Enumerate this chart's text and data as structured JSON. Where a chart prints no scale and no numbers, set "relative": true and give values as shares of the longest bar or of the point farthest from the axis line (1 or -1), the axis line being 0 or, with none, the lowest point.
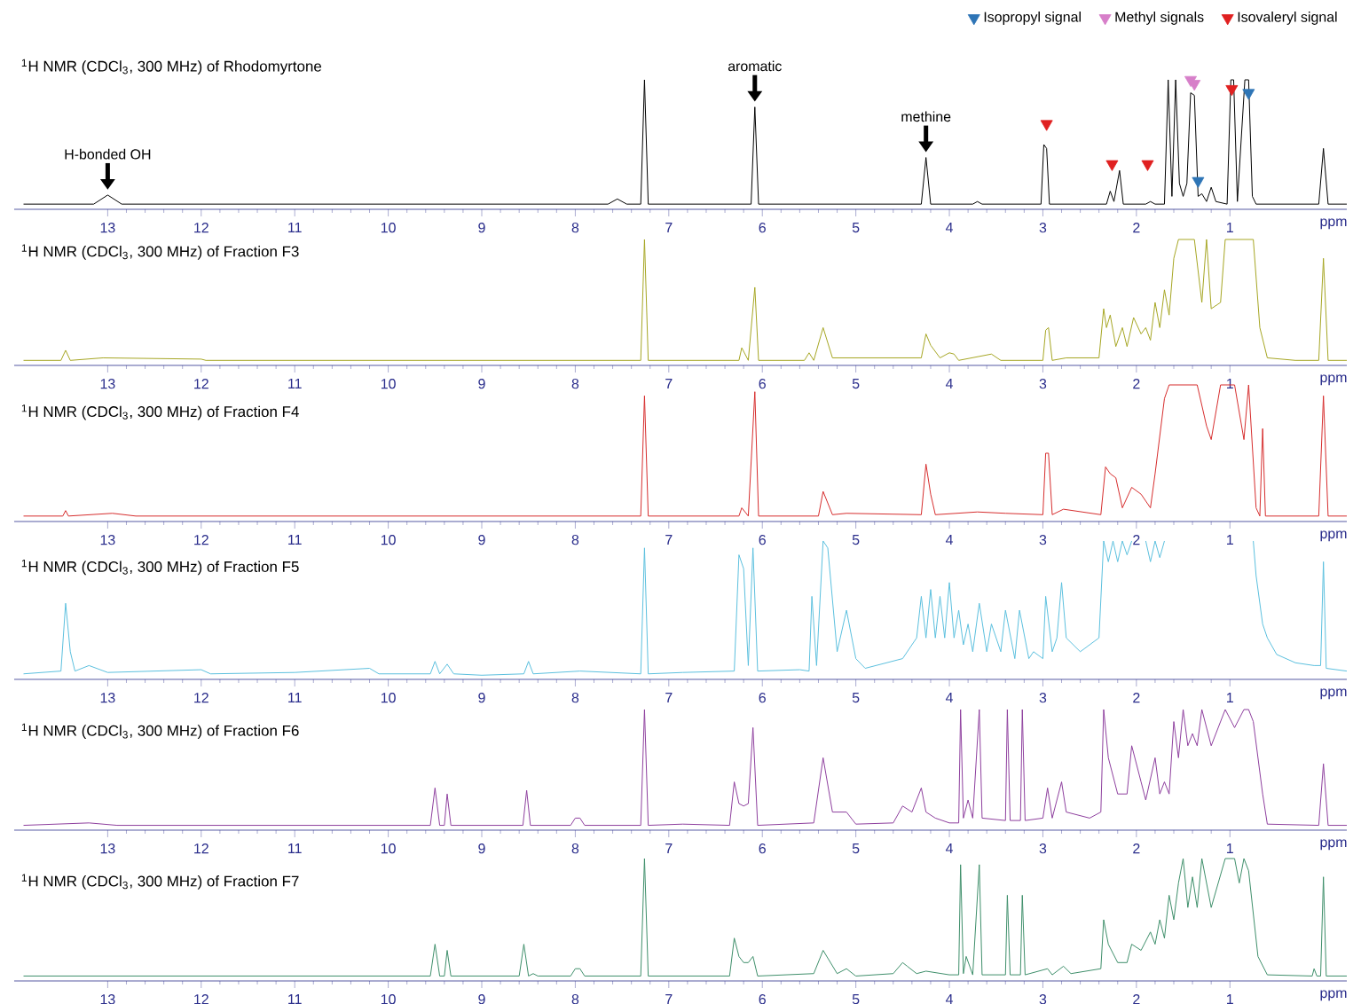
{
  "chart_data": [
    {
      "type": "line",
      "title": "$^{1}$H NMR (CDCl$_{3}$, 300 MHz) of Rhodomyrtone",
      "xlabel": "ppm",
      "relative": true,
      "xlim": [
        14.0,
        -0.25
      ],
      "xticks": [
        13,
        12,
        11,
        10,
        9,
        8,
        7,
        6,
        5,
        4,
        3,
        2,
        1
      ],
      "legend": "top right",
      "annotations": [
        {
          "text": "H-bonded OH",
          "x": 13.0,
          "y": 0.11
        },
        {
          "text": "aromatic",
          "x": 6.08,
          "y": 0.79
        },
        {
          "text": "methine",
          "x": 4.25,
          "y": 0.4
        }
      ],
      "series": [
        {
          "color": "#000000",
          "x": [
            13.9,
            13.15,
            13.0,
            12.85,
            7.65,
            7.55,
            7.45,
            7.3,
            7.26,
            7.22,
            6.12,
            6.08,
            6.04,
            4.3,
            4.25,
            4.2,
            3.75,
            3.7,
            3.65,
            3.02,
            2.99,
            2.96,
            2.93,
            2.32,
            2.28,
            2.24,
            2.18,
            2.14,
            1.9,
            1.85,
            1.8,
            1.7,
            1.66,
            1.62,
            1.58,
            1.54,
            1.5,
            1.46,
            1.42,
            1.38,
            1.34,
            1.3,
            1.25,
            1.2,
            1.15,
            1.03,
            0.99,
            0.96,
            0.92,
            0.84,
            0.8,
            0.76,
            0.72,
            0.05,
            0.0,
            -0.05,
            -0.25
          ],
          "values": [
            0.04,
            0.04,
            0.11,
            0.04,
            0.04,
            0.08,
            0.04,
            0.04,
            1,
            0.04,
            0.04,
            0.79,
            0.04,
            0.04,
            0.4,
            0.04,
            0.04,
            0.06,
            0.04,
            0.04,
            0.5,
            0.47,
            0.04,
            0.04,
            0.14,
            0.06,
            0.3,
            0.04,
            0.04,
            0.06,
            0.04,
            0.04,
            1,
            0.1,
            1,
            0.2,
            0.1,
            0.2,
            0.9,
            0.88,
            0.1,
            0.12,
            0.06,
            0.17,
            0.06,
            0.04,
            1,
            1,
            0.06,
            1,
            1,
            0.1,
            0.04,
            0.04,
            0.47,
            0.04,
            0.04
          ]
        },
        {
          "type": "scatter",
          "marker": "triangle",
          "name": "Isopropyl signal",
          "color": "#2e75b6",
          "x": [
            0.8,
            1.34
          ],
          "values": [
            0.9,
            0.22
          ]
        },
        {
          "type": "scatter",
          "marker": "triangle",
          "name": "Methyl signals",
          "color": "#d77fc9",
          "x": [
            1.42,
            1.38
          ],
          "values": [
            1.0,
            0.97
          ]
        },
        {
          "type": "scatter",
          "marker": "triangle",
          "name": "Isovaleryl signal",
          "color": "#e02020",
          "x": [
            2.96,
            2.26,
            1.88,
            0.98
          ],
          "values": [
            0.66,
            0.35,
            0.35,
            0.93
          ]
        }
      ]
    },
    {
      "type": "line",
      "title": "$^{1}$H NMR (CDCl$_{3}$, 300 MHz) of Fraction F3",
      "xlabel": "ppm",
      "relative": true,
      "xlim": [
        14.0,
        -0.25
      ],
      "xticks": [
        13,
        12,
        11,
        10,
        9,
        8,
        7,
        6,
        5,
        4,
        3,
        2,
        1
      ],
      "series": [
        {
          "color": "#a6a623",
          "x": [
            13.9,
            13.5,
            13.45,
            13.4,
            13.05,
            12.0,
            11.95,
            7.3,
            7.26,
            7.22,
            6.25,
            6.22,
            6.15,
            6.08,
            6.04,
            5.55,
            5.5,
            5.45,
            5.35,
            5.25,
            5.1,
            4.3,
            4.25,
            4.2,
            4.1,
            4.0,
            3.95,
            3.9,
            3.55,
            3.45,
            3.0,
            2.97,
            2.94,
            2.9,
            2.75,
            2.4,
            2.35,
            2.32,
            2.28,
            2.22,
            2.15,
            2.1,
            2.03,
            1.95,
            1.9,
            1.85,
            1.8,
            1.75,
            1.7,
            1.65,
            1.6,
            1.55,
            1.45,
            1.38,
            1.3,
            1.25,
            1.2,
            1.1,
            1.05,
            0.95,
            0.85,
            0.75,
            0.68,
            0.6,
            0.3,
            0.05,
            0.0,
            -0.05,
            -0.25
          ],
          "values": [
            0.04,
            0.04,
            0.12,
            0.04,
            0.06,
            0.05,
            0.04,
            0.04,
            1,
            0.04,
            0.04,
            0.14,
            0.04,
            0.62,
            0.04,
            0.04,
            0.1,
            0.04,
            0.3,
            0.06,
            0.06,
            0.06,
            0.25,
            0.16,
            0.06,
            0.1,
            0.09,
            0.04,
            0.09,
            0.04,
            0.04,
            0.28,
            0.3,
            0.04,
            0.06,
            0.06,
            0.45,
            0.3,
            0.4,
            0.15,
            0.3,
            0.15,
            0.38,
            0.25,
            0.3,
            0.2,
            0.5,
            0.3,
            0.6,
            0.4,
            0.85,
            1,
            1,
            1,
            0.5,
            1,
            0.45,
            0.5,
            1,
            1,
            1,
            1,
            0.3,
            0.06,
            0.04,
            0.04,
            0.85,
            0.04,
            0.04
          ]
        }
      ]
    },
    {
      "type": "line",
      "title": "$^{1}$H NMR (CDCl$_{3}$, 300 MHz) of Fraction F4",
      "xlabel": "ppm",
      "relative": true,
      "xlim": [
        14.0,
        -0.25
      ],
      "xticks": [
        13,
        12,
        11,
        10,
        9,
        8,
        7,
        6,
        5,
        4,
        3,
        2,
        1
      ],
      "series": [
        {
          "color": "#d62d2d",
          "x": [
            13.9,
            13.48,
            13.45,
            13.42,
            12.95,
            12.7,
            7.3,
            7.26,
            7.22,
            6.25,
            6.22,
            6.15,
            6.08,
            6.04,
            5.4,
            5.35,
            5.25,
            5.1,
            4.3,
            4.25,
            4.2,
            4.15,
            3.7,
            3.4,
            3.0,
            2.97,
            2.94,
            2.9,
            2.78,
            2.38,
            2.33,
            2.28,
            2.22,
            2.15,
            2.05,
            1.95,
            1.85,
            1.8,
            1.7,
            1.65,
            1.5,
            1.35,
            1.25,
            1.2,
            1.1,
            0.95,
            0.85,
            0.8,
            0.72,
            0.68,
            0.65,
            0.62,
            0.05,
            0.0,
            -0.05,
            -0.25
          ],
          "values": [
            0.04,
            0.04,
            0.08,
            0.04,
            0.06,
            0.04,
            0.04,
            0.92,
            0.04,
            0.04,
            0.1,
            0.04,
            0.95,
            0.04,
            0.04,
            0.22,
            0.05,
            0.06,
            0.05,
            0.42,
            0.2,
            0.05,
            0.07,
            0.06,
            0.05,
            0.5,
            0.5,
            0.05,
            0.09,
            0.05,
            0.4,
            0.35,
            0.32,
            0.1,
            0.25,
            0.2,
            0.1,
            0.35,
            0.9,
            1,
            1,
            1,
            0.7,
            0.6,
            1,
            1,
            0.6,
            1,
            0.1,
            0.04,
            0.68,
            0.04,
            0.04,
            0.92,
            0.04,
            0.04
          ]
        }
      ]
    },
    {
      "type": "line",
      "title": "$^{1}$H NMR (CDCl$_{3}$, 300 MHz) of Fraction F5",
      "xlabel": "ppm",
      "relative": true,
      "xlim": [
        14.0,
        -0.25
      ],
      "xticks": [
        13,
        12,
        11,
        10,
        9,
        8,
        7,
        6,
        5,
        4,
        3,
        2,
        1
      ],
      "series": [
        {
          "color": "#5bc0de",
          "x": [
            13.9,
            13.5,
            13.45,
            13.4,
            13.35,
            13.2,
            13.0,
            12.0,
            11.9,
            11.0,
            10.2,
            10.1,
            9.55,
            9.5,
            9.45,
            9.37,
            9.3,
            9.0,
            8.55,
            8.5,
            8.45,
            7.95,
            7.3,
            7.26,
            7.22,
            6.85,
            6.3,
            6.25,
            6.2,
            6.15,
            6.1,
            6.05,
            5.6,
            5.5,
            5.47,
            5.42,
            5.35,
            5.3,
            5.2,
            5.1,
            5.0,
            4.9,
            4.5,
            4.35,
            4.3,
            4.25,
            4.2,
            4.15,
            4.1,
            4.05,
            4.0,
            3.95,
            3.9,
            3.85,
            3.8,
            3.75,
            3.68,
            3.6,
            3.55,
            3.45,
            3.4,
            3.3,
            3.25,
            3.15,
            3.1,
            3.0,
            2.97,
            2.9,
            2.85,
            2.8,
            2.75,
            2.6,
            2.4,
            2.35,
            2.3,
            2.25,
            2.2,
            2.15,
            2.1,
            2.05,
            2.0,
            1.9,
            1.85,
            1.8,
            1.75,
            1.7,
            1.65,
            0.75,
            0.72,
            0.65,
            0.6,
            0.5,
            0.3,
            0.1,
            0.03,
            0.0,
            -0.03,
            -0.25
          ],
          "values": [
            0.04,
            0.06,
            0.55,
            0.2,
            0.06,
            0.1,
            0.05,
            0.07,
            0.04,
            0.05,
            0.08,
            0.04,
            0.04,
            0.13,
            0.04,
            0.11,
            0.04,
            0.03,
            0.04,
            0.13,
            0.04,
            0.06,
            0.04,
            0.95,
            0.04,
            0.05,
            0.06,
            0.9,
            0.8,
            0.1,
            0.95,
            0.06,
            0.07,
            0.06,
            0.6,
            0.1,
            1,
            0.95,
            0.2,
            0.5,
            0.15,
            0.08,
            0.15,
            0.3,
            0.6,
            0.3,
            0.65,
            0.3,
            0.6,
            0.3,
            0.7,
            0.3,
            0.5,
            0.25,
            0.4,
            0.2,
            0.55,
            0.2,
            0.4,
            0.2,
            0.5,
            0.15,
            0.5,
            0.15,
            0.2,
            0.15,
            0.6,
            0.2,
            0.3,
            0.7,
            0.3,
            0.2,
            0.3,
            1,
            0.85,
            1,
            0.85,
            1,
            0.9,
            1,
            null,
            1,
            0.85,
            1,
            0.88,
            1,
            null,
            1,
            0.75,
            0.4,
            0.3,
            0.18,
            0.12,
            0.1,
            0.1,
            0.85,
            0.08,
            0.06
          ]
        }
      ]
    },
    {
      "type": "line",
      "title": "$^{1}$H NMR (CDCl$_{3}$, 300 MHz) of Fraction F6",
      "xlabel": "ppm",
      "relative": true,
      "xlim": [
        14.0,
        -0.25
      ],
      "xticks": [
        13,
        12,
        11,
        10,
        9,
        8,
        7,
        6,
        5,
        4,
        3,
        2,
        1
      ],
      "series": [
        {
          "color": "#8e3f9e",
          "x": [
            13.9,
            13.2,
            12.9,
            9.55,
            9.5,
            9.45,
            9.4,
            9.37,
            9.33,
            8.56,
            8.52,
            8.48,
            8.05,
            8.0,
            7.95,
            7.9,
            7.3,
            7.26,
            7.22,
            6.85,
            6.35,
            6.3,
            6.25,
            6.2,
            6.15,
            6.1,
            6.05,
            5.45,
            5.35,
            5.25,
            5.1,
            5.0,
            4.6,
            4.5,
            4.4,
            4.3,
            4.25,
            4.15,
            4.0,
            3.9,
            3.88,
            3.85,
            3.8,
            3.75,
            3.68,
            3.65,
            3.4,
            3.38,
            3.35,
            3.24,
            3.22,
            3.19,
            3.0,
            2.95,
            2.9,
            2.8,
            2.75,
            2.5,
            2.38,
            2.35,
            2.3,
            2.2,
            2.1,
            2.05,
            1.95,
            1.9,
            1.8,
            1.75,
            1.7,
            1.65,
            1.6,
            1.55,
            1.5,
            1.45,
            1.4,
            1.35,
            1.3,
            1.2,
            1.05,
            0.95,
            0.85,
            0.8,
            0.75,
            0.65,
            0.6,
            0.05,
            0.0,
            -0.05,
            -0.25
          ],
          "values": [
            0.04,
            0.06,
            0.04,
            0.04,
            0.35,
            0.04,
            0.04,
            0.3,
            0.04,
            0.04,
            0.33,
            0.04,
            0.04,
            0.1,
            0.1,
            0.04,
            0.04,
            1,
            0.04,
            0.05,
            0.04,
            0.4,
            0.22,
            0.2,
            0.22,
            0.85,
            0.04,
            0.06,
            0.6,
            0.15,
            0.15,
            0.05,
            0.06,
            0.2,
            0.15,
            0.35,
            0.15,
            0.1,
            0.06,
            0.06,
            1,
            0.1,
            0.25,
            0.1,
            1,
            0.1,
            0.08,
            1,
            0.08,
            0.08,
            1,
            0.08,
            0.1,
            0.35,
            0.1,
            0.4,
            0.15,
            0.1,
            0.15,
            1,
            0.6,
            0.3,
            0.3,
            0.7,
            0.4,
            0.25,
            0.6,
            0.3,
            0.4,
            0.3,
            0.9,
            0.6,
            1,
            0.7,
            0.8,
            0.7,
            1,
            0.7,
            1,
            0.85,
            1,
            1,
            0.9,
            0.3,
            0.05,
            0.04,
            0.55,
            0.04,
            0.04
          ]
        }
      ]
    },
    {
      "type": "line",
      "title": "$^{1}$H NMR (CDCl$_{3}$, 300 MHz) of Fraction F7",
      "xlabel": "ppm",
      "relative": true,
      "xlim": [
        14.0,
        -0.25
      ],
      "xticks": [
        13,
        12,
        11,
        10,
        9,
        8,
        7,
        6,
        5,
        4,
        3,
        2,
        1
      ],
      "series": [
        {
          "color": "#3e8f6a",
          "x": [
            13.9,
            13.1,
            9.55,
            9.5,
            9.45,
            9.4,
            9.37,
            9.33,
            8.6,
            8.55,
            8.5,
            8.45,
            8.4,
            8.05,
            8.0,
            7.95,
            7.9,
            7.3,
            7.26,
            7.22,
            6.35,
            6.3,
            6.25,
            6.2,
            6.15,
            6.1,
            6.05,
            5.45,
            5.35,
            5.2,
            5.1,
            5.0,
            4.6,
            4.5,
            4.45,
            4.35,
            4.25,
            4.0,
            3.9,
            3.88,
            3.85,
            3.82,
            3.75,
            3.68,
            3.65,
            3.4,
            3.38,
            3.35,
            3.24,
            3.22,
            3.19,
            2.95,
            2.9,
            2.78,
            2.7,
            2.38,
            2.35,
            2.3,
            2.2,
            2.1,
            2.05,
            1.95,
            1.85,
            1.8,
            1.75,
            1.7,
            1.65,
            1.6,
            1.55,
            1.5,
            1.45,
            1.4,
            1.35,
            1.3,
            1.2,
            1.05,
            0.95,
            0.9,
            0.85,
            0.8,
            0.7,
            0.6,
            0.12,
            0.1,
            0.07,
            0.03,
            0.0,
            -0.03,
            -0.25
          ],
          "values": [
            0.04,
            0.04,
            0.04,
            0.3,
            0.04,
            0.04,
            0.25,
            0.04,
            0.04,
            0.3,
            0.04,
            0.06,
            0.04,
            0.04,
            0.1,
            0.1,
            0.04,
            0.04,
            1,
            0.04,
            0.04,
            0.35,
            0.2,
            0.15,
            0.15,
            0.2,
            0.04,
            0.06,
            0.25,
            0.06,
            0.1,
            0.04,
            0.06,
            0.15,
            0.12,
            0.06,
            0.08,
            0.05,
            0.05,
            0.95,
            0.06,
            0.2,
            0.05,
            0.95,
            0.05,
            0.05,
            0.7,
            0.05,
            0.05,
            0.7,
            0.05,
            0.1,
            0.05,
            0.12,
            0.06,
            0.1,
            0.5,
            0.3,
            0.15,
            0.15,
            0.3,
            0.25,
            0.4,
            0.3,
            0.5,
            0.35,
            0.7,
            0.5,
            0.8,
            1,
            0.6,
            0.85,
            0.6,
            1,
            0.6,
            1,
            1,
            0.8,
            1,
            0.9,
            0.2,
            0.05,
            0.04,
            0.1,
            0.04,
            0.04,
            0.85,
            0.04,
            0.04
          ]
        }
      ]
    }
  ]
}
